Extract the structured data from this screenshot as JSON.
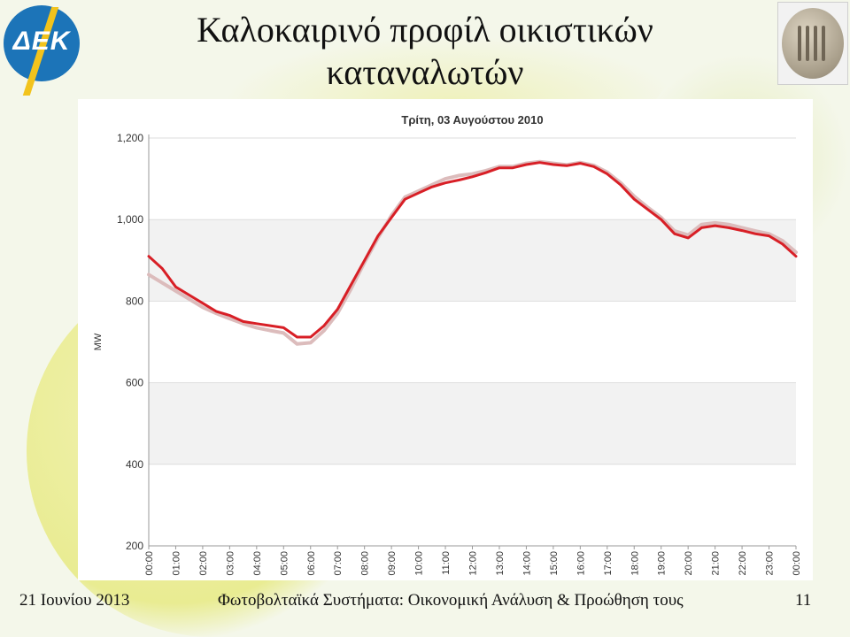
{
  "slide": {
    "title": "Καλοκαιρινό προφίλ οικιστικών καταναλωτών",
    "logo_text": "ΔΕΚ",
    "footer_date": "21 Ιουνίου 2013",
    "footer_subtitle": "Φωτοβολταϊκά Συστήματα: Οικονομική Ανάλυση & Προώθηση τους",
    "page_number": "11",
    "accent_color": "#1c74b8"
  },
  "chart_data": {
    "type": "line",
    "title": "Τρίτη, 03 Αυγούστου 2010",
    "xlabel": "",
    "ylabel": "MW",
    "ylim": [
      200,
      1200
    ],
    "yticks": [
      200,
      400,
      600,
      800,
      1000,
      1200
    ],
    "ytick_labels": [
      "200",
      "400",
      "600",
      "800",
      "1,000",
      "1,200"
    ],
    "categories": [
      "00:00",
      "01:00",
      "02:00",
      "03:00",
      "04:00",
      "05:00",
      "06:00",
      "07:00",
      "08:00",
      "09:00",
      "10:00",
      "11:00",
      "12:00",
      "13:00",
      "14:00",
      "15:00",
      "16:00",
      "17:00",
      "18:00",
      "19:00",
      "20:00",
      "21:00",
      "22:00",
      "23:00",
      "00:00"
    ],
    "grid": true,
    "legend": "none",
    "series": [
      {
        "color": "#d81f26",
        "x": [
          0,
          0.5,
          1,
          1.5,
          2,
          2.5,
          3,
          3.5,
          4,
          4.5,
          5,
          5.5,
          6,
          6.5,
          7,
          7.5,
          8,
          8.5,
          9,
          9.5,
          10,
          10.5,
          11,
          11.5,
          12,
          12.5,
          13,
          13.5,
          14,
          14.5,
          15,
          15.5,
          16,
          16.5,
          17,
          17.5,
          18,
          18.5,
          19,
          19.5,
          20,
          20.5,
          21,
          21.5,
          22,
          22.5,
          23,
          23.5,
          24
        ],
        "values": [
          910,
          880,
          835,
          815,
          795,
          775,
          765,
          750,
          745,
          740,
          735,
          712,
          712,
          740,
          780,
          840,
          900,
          960,
          1005,
          1050,
          1065,
          1080,
          1090,
          1097,
          1105,
          1115,
          1127,
          1127,
          1135,
          1140,
          1135,
          1132,
          1138,
          1130,
          1112,
          1085,
          1050,
          1025,
          1000,
          965,
          955,
          980,
          985,
          980,
          973,
          965,
          960,
          940,
          910
        ]
      },
      {
        "color": "#dcbcbc",
        "x": [
          0,
          0.5,
          1,
          1.5,
          2,
          2.5,
          3,
          3.5,
          4,
          4.5,
          5,
          5.5,
          6,
          6.5,
          7,
          7.5,
          8,
          8.5,
          9,
          9.5,
          10,
          10.5,
          11,
          11.5,
          12,
          12.5,
          13,
          13.5,
          14,
          14.5,
          15,
          15.5,
          16,
          16.5,
          17,
          17.5,
          18,
          18.5,
          19,
          19.5,
          20,
          20.5,
          21,
          21.5,
          22,
          22.5,
          23,
          23.5,
          24
        ],
        "values": [
          865,
          845,
          825,
          805,
          785,
          770,
          757,
          745,
          735,
          728,
          722,
          695,
          698,
          728,
          770,
          830,
          895,
          955,
          1010,
          1055,
          1070,
          1085,
          1100,
          1108,
          1112,
          1120,
          1130,
          1130,
          1138,
          1142,
          1138,
          1134,
          1140,
          1133,
          1116,
          1090,
          1057,
          1030,
          1005,
          972,
          962,
          988,
          992,
          988,
          980,
          972,
          965,
          948,
          920
        ]
      }
    ]
  }
}
